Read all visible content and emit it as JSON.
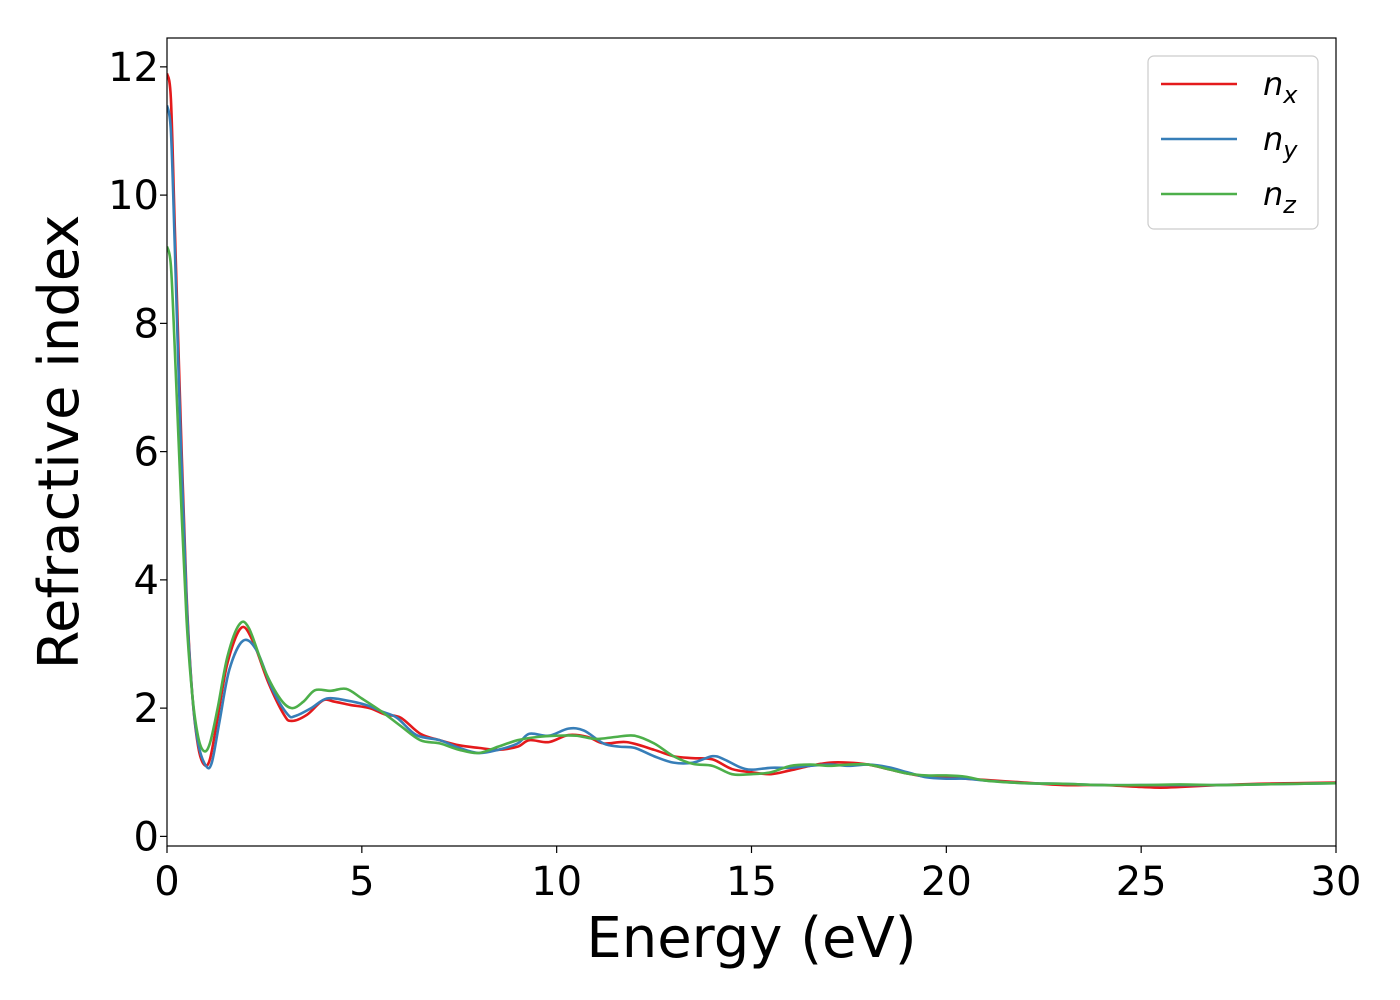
{
  "chart_data": {
    "type": "line",
    "xlabel": "Energy (eV)",
    "ylabel": "Refractive index",
    "xlim": [
      0,
      30
    ],
    "ylim": [
      -0.15,
      12.45
    ],
    "x_ticks": [
      0,
      5,
      10,
      15,
      20,
      25,
      30
    ],
    "y_ticks": [
      0,
      2,
      4,
      6,
      8,
      10,
      12
    ],
    "grid": false,
    "legend_position": "top-right",
    "series": [
      {
        "name": "n",
        "subscript": "x",
        "color": "#e41a1c",
        "points": [
          [
            0,
            11.9
          ],
          [
            0.1,
            11.5
          ],
          [
            0.2,
            9.5
          ],
          [
            0.35,
            6.5
          ],
          [
            0.5,
            3.8
          ],
          [
            0.65,
            2.2
          ],
          [
            0.8,
            1.4
          ],
          [
            0.95,
            1.12
          ],
          [
            1.1,
            1.2
          ],
          [
            1.3,
            1.85
          ],
          [
            1.55,
            2.7
          ],
          [
            1.9,
            3.25
          ],
          [
            2.2,
            3.05
          ],
          [
            2.6,
            2.4
          ],
          [
            3.0,
            1.9
          ],
          [
            3.2,
            1.8
          ],
          [
            3.6,
            1.9
          ],
          [
            4.0,
            2.12
          ],
          [
            4.3,
            2.1
          ],
          [
            4.7,
            2.05
          ],
          [
            5.2,
            2.0
          ],
          [
            5.6,
            1.9
          ],
          [
            6.0,
            1.85
          ],
          [
            6.5,
            1.6
          ],
          [
            7.0,
            1.5
          ],
          [
            7.5,
            1.42
          ],
          [
            8.0,
            1.38
          ],
          [
            8.5,
            1.35
          ],
          [
            9.0,
            1.4
          ],
          [
            9.3,
            1.5
          ],
          [
            9.8,
            1.47
          ],
          [
            10.3,
            1.58
          ],
          [
            10.8,
            1.55
          ],
          [
            11.2,
            1.45
          ],
          [
            11.8,
            1.47
          ],
          [
            12.5,
            1.35
          ],
          [
            13.0,
            1.25
          ],
          [
            13.5,
            1.22
          ],
          [
            14.0,
            1.2
          ],
          [
            14.5,
            1.05
          ],
          [
            15.0,
            1.0
          ],
          [
            15.5,
            0.97
          ],
          [
            16.0,
            1.03
          ],
          [
            16.5,
            1.1
          ],
          [
            17.0,
            1.15
          ],
          [
            17.5,
            1.15
          ],
          [
            18.0,
            1.12
          ],
          [
            18.5,
            1.05
          ],
          [
            19.0,
            0.98
          ],
          [
            19.5,
            0.93
          ],
          [
            20.0,
            0.92
          ],
          [
            20.5,
            0.9
          ],
          [
            21.0,
            0.88
          ],
          [
            22.0,
            0.84
          ],
          [
            23.0,
            0.8
          ],
          [
            24.0,
            0.8
          ],
          [
            25.0,
            0.77
          ],
          [
            25.5,
            0.76
          ],
          [
            26.0,
            0.77
          ],
          [
            27.0,
            0.8
          ],
          [
            28.0,
            0.82
          ],
          [
            29.0,
            0.83
          ],
          [
            30.0,
            0.84
          ]
        ]
      },
      {
        "name": "n",
        "subscript": "y",
        "color": "#377eb8",
        "points": [
          [
            0,
            11.4
          ],
          [
            0.1,
            11.0
          ],
          [
            0.2,
            9.2
          ],
          [
            0.35,
            6.2
          ],
          [
            0.5,
            3.7
          ],
          [
            0.65,
            2.2
          ],
          [
            0.8,
            1.45
          ],
          [
            1.0,
            1.1
          ],
          [
            1.15,
            1.15
          ],
          [
            1.35,
            1.8
          ],
          [
            1.6,
            2.6
          ],
          [
            1.95,
            3.05
          ],
          [
            2.3,
            2.9
          ],
          [
            2.7,
            2.3
          ],
          [
            3.1,
            1.9
          ],
          [
            3.3,
            1.88
          ],
          [
            3.7,
            2.0
          ],
          [
            4.1,
            2.15
          ],
          [
            4.6,
            2.12
          ],
          [
            5.1,
            2.05
          ],
          [
            5.5,
            1.95
          ],
          [
            5.9,
            1.85
          ],
          [
            6.4,
            1.58
          ],
          [
            7.0,
            1.5
          ],
          [
            7.5,
            1.38
          ],
          [
            8.0,
            1.3
          ],
          [
            8.5,
            1.35
          ],
          [
            9.0,
            1.45
          ],
          [
            9.3,
            1.6
          ],
          [
            9.8,
            1.57
          ],
          [
            10.3,
            1.68
          ],
          [
            10.7,
            1.65
          ],
          [
            11.2,
            1.45
          ],
          [
            11.6,
            1.4
          ],
          [
            12.0,
            1.38
          ],
          [
            12.5,
            1.25
          ],
          [
            13.0,
            1.15
          ],
          [
            13.5,
            1.15
          ],
          [
            14.0,
            1.25
          ],
          [
            14.3,
            1.2
          ],
          [
            14.7,
            1.08
          ],
          [
            15.0,
            1.04
          ],
          [
            15.5,
            1.07
          ],
          [
            16.0,
            1.07
          ],
          [
            16.5,
            1.1
          ],
          [
            17.0,
            1.12
          ],
          [
            17.5,
            1.1
          ],
          [
            18.0,
            1.12
          ],
          [
            18.5,
            1.08
          ],
          [
            19.0,
            1.0
          ],
          [
            19.5,
            0.92
          ],
          [
            20.0,
            0.9
          ],
          [
            20.5,
            0.9
          ],
          [
            21.0,
            0.87
          ],
          [
            22.0,
            0.83
          ],
          [
            23.0,
            0.82
          ],
          [
            24.0,
            0.8
          ],
          [
            25.0,
            0.8
          ],
          [
            26.0,
            0.8
          ],
          [
            27.0,
            0.8
          ],
          [
            28.0,
            0.81
          ],
          [
            29.0,
            0.82
          ],
          [
            30.0,
            0.83
          ]
        ]
      },
      {
        "name": "n",
        "subscript": "z",
        "color": "#4daf4a",
        "points": [
          [
            0,
            9.2
          ],
          [
            0.1,
            8.9
          ],
          [
            0.2,
            7.6
          ],
          [
            0.35,
            5.4
          ],
          [
            0.5,
            3.4
          ],
          [
            0.65,
            2.2
          ],
          [
            0.8,
            1.55
          ],
          [
            0.95,
            1.33
          ],
          [
            1.1,
            1.45
          ],
          [
            1.3,
            2.0
          ],
          [
            1.55,
            2.8
          ],
          [
            1.85,
            3.3
          ],
          [
            2.1,
            3.25
          ],
          [
            2.5,
            2.6
          ],
          [
            2.9,
            2.15
          ],
          [
            3.2,
            2.0
          ],
          [
            3.5,
            2.1
          ],
          [
            3.8,
            2.28
          ],
          [
            4.2,
            2.27
          ],
          [
            4.6,
            2.3
          ],
          [
            5.0,
            2.15
          ],
          [
            5.5,
            1.95
          ],
          [
            6.0,
            1.72
          ],
          [
            6.5,
            1.5
          ],
          [
            7.0,
            1.45
          ],
          [
            7.5,
            1.35
          ],
          [
            8.0,
            1.3
          ],
          [
            8.5,
            1.4
          ],
          [
            9.0,
            1.5
          ],
          [
            9.5,
            1.55
          ],
          [
            10.0,
            1.57
          ],
          [
            10.5,
            1.57
          ],
          [
            11.0,
            1.52
          ],
          [
            11.5,
            1.55
          ],
          [
            12.0,
            1.57
          ],
          [
            12.5,
            1.45
          ],
          [
            13.0,
            1.25
          ],
          [
            13.5,
            1.13
          ],
          [
            14.0,
            1.1
          ],
          [
            14.5,
            0.97
          ],
          [
            15.0,
            0.97
          ],
          [
            15.5,
            1.0
          ],
          [
            16.0,
            1.1
          ],
          [
            16.5,
            1.12
          ],
          [
            17.0,
            1.1
          ],
          [
            17.5,
            1.12
          ],
          [
            18.0,
            1.12
          ],
          [
            18.5,
            1.05
          ],
          [
            19.0,
            0.98
          ],
          [
            19.5,
            0.95
          ],
          [
            20.0,
            0.95
          ],
          [
            20.5,
            0.93
          ],
          [
            21.0,
            0.87
          ],
          [
            22.0,
            0.83
          ],
          [
            23.0,
            0.82
          ],
          [
            24.0,
            0.8
          ],
          [
            25.0,
            0.8
          ],
          [
            26.0,
            0.81
          ],
          [
            27.0,
            0.8
          ],
          [
            28.0,
            0.81
          ],
          [
            29.0,
            0.82
          ],
          [
            30.0,
            0.83
          ]
        ]
      }
    ]
  }
}
